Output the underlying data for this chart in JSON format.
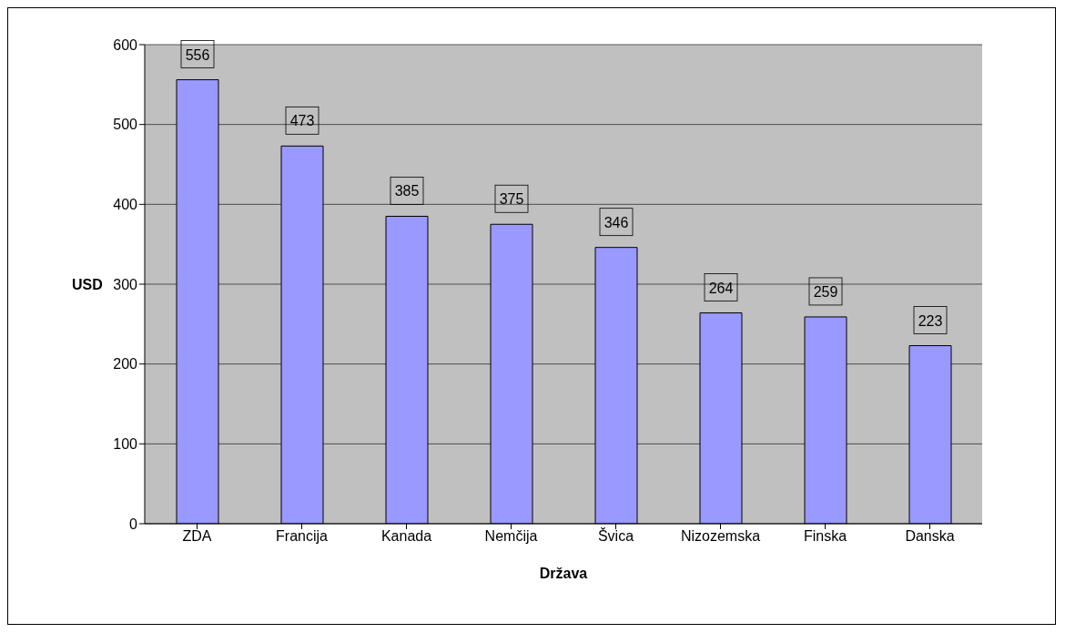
{
  "chart_data": {
    "type": "bar",
    "xlabel": "Država",
    "ylabel": "USD",
    "categories": [
      "ZDA",
      "Francija",
      "Kanada",
      "Nemčija",
      "Švica",
      "Nizozemska",
      "Finska",
      "Danska"
    ],
    "values": [
      556,
      473,
      385,
      375,
      346,
      264,
      259,
      223
    ],
    "color": "#9999ff",
    "ylim": [
      0,
      600
    ],
    "yticks": [
      0,
      100,
      200,
      300,
      400,
      500,
      600
    ],
    "grid": "y",
    "data_labels": true
  }
}
